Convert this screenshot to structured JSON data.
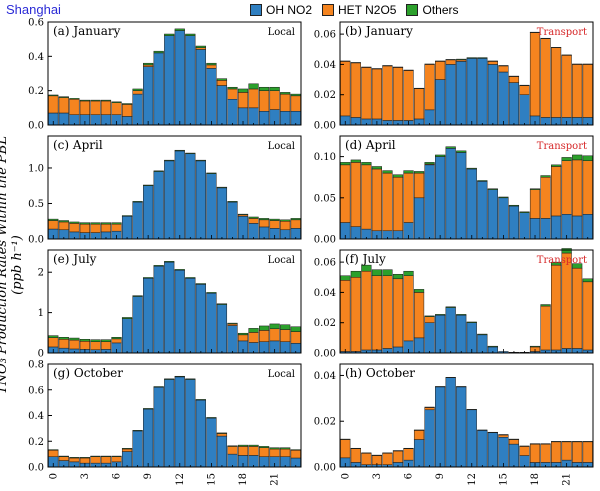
{
  "header": {
    "city": "Shanghai",
    "legend": [
      {
        "label": "OH NO2",
        "color": "#2f7fc1"
      },
      {
        "label": "HET N2O5",
        "color": "#f5841f"
      },
      {
        "label": "Others",
        "color": "#2ca02c"
      }
    ],
    "ylabel": "TNO₃ Production Rates Within the PBL (ppb h⁻¹)"
  },
  "colors": {
    "oh": "#2f7fc1",
    "het": "#f5841f",
    "others": "#2ca02c",
    "local_tag": "#000000",
    "transport_tag": "#d62728"
  },
  "chart_data": [
    {
      "type": "bar",
      "stacked": true,
      "title": "(a) January",
      "tag": "Local",
      "ylim": [
        0,
        0.6
      ],
      "yticks": [
        "0.0",
        "0.2",
        "0.4",
        "0.6"
      ],
      "ytick_values": [
        0,
        0.2,
        0.4,
        0.6
      ],
      "x": [
        0,
        1,
        2,
        3,
        4,
        5,
        6,
        7,
        8,
        9,
        10,
        11,
        12,
        13,
        14,
        15,
        16,
        17,
        18,
        19,
        20,
        21,
        22,
        23
      ],
      "series": [
        {
          "name": "OH NO2",
          "values": [
            0.07,
            0.07,
            0.06,
            0.06,
            0.06,
            0.06,
            0.06,
            0.05,
            0.18,
            0.34,
            0.42,
            0.52,
            0.55,
            0.52,
            0.44,
            0.33,
            0.23,
            0.15,
            0.1,
            0.1,
            0.08,
            0.09,
            0.08,
            0.08
          ]
        },
        {
          "name": "HET N2O5",
          "values": [
            0.1,
            0.09,
            0.09,
            0.08,
            0.08,
            0.08,
            0.07,
            0.07,
            0.02,
            0.01,
            0.0,
            0.0,
            0.0,
            0.0,
            0.01,
            0.02,
            0.03,
            0.06,
            0.09,
            0.11,
            0.12,
            0.11,
            0.1,
            0.09
          ]
        },
        {
          "name": "Others",
          "values": [
            0.005,
            0.005,
            0.005,
            0.005,
            0.005,
            0.005,
            0.005,
            0.005,
            0.01,
            0.01,
            0.01,
            0.01,
            0.01,
            0.01,
            0.01,
            0.01,
            0.01,
            0.01,
            0.02,
            0.03,
            0.02,
            0.02,
            0.01,
            0.01
          ]
        }
      ]
    },
    {
      "type": "bar",
      "stacked": true,
      "title": "(b) January",
      "tag": "Transport",
      "ylim": [
        0,
        0.068
      ],
      "yticks": [
        "0.00",
        "0.02",
        "0.04",
        "0.06"
      ],
      "ytick_values": [
        0,
        0.02,
        0.04,
        0.06
      ],
      "x": [
        0,
        1,
        2,
        3,
        4,
        5,
        6,
        7,
        8,
        9,
        10,
        11,
        12,
        13,
        14,
        15,
        16,
        17,
        18,
        19,
        20,
        21,
        22,
        23
      ],
      "series": [
        {
          "name": "OH NO2",
          "values": [
            0.006,
            0.005,
            0.004,
            0.004,
            0.003,
            0.003,
            0.003,
            0.004,
            0.01,
            0.03,
            0.04,
            0.042,
            0.044,
            0.044,
            0.04,
            0.035,
            0.028,
            0.02,
            0.006,
            0.005,
            0.005,
            0.005,
            0.005,
            0.005
          ]
        },
        {
          "name": "HET N2O5",
          "values": [
            0.036,
            0.036,
            0.034,
            0.033,
            0.036,
            0.035,
            0.033,
            0.02,
            0.03,
            0.012,
            0.003,
            0.001,
            0.0,
            0.0,
            0.002,
            0.004,
            0.004,
            0.006,
            0.055,
            0.052,
            0.046,
            0.041,
            0.035,
            0.035
          ]
        },
        {
          "name": "Others",
          "values": [
            0.0003,
            0.0003,
            0.0003,
            0.0003,
            0.0003,
            0.0003,
            0.0003,
            0.0003,
            0.0003,
            0.0003,
            0.0003,
            0.0005,
            0.0005,
            0.0005,
            0.0003,
            0.0003,
            0.0003,
            0.0003,
            0.0003,
            0.0003,
            0.0003,
            0.0003,
            0.0003,
            0.0003
          ]
        }
      ]
    },
    {
      "type": "bar",
      "stacked": true,
      "title": "(c) April",
      "tag": "Local",
      "ylim": [
        0,
        1.45
      ],
      "yticks": [
        "0.0",
        "0.5",
        "1.0"
      ],
      "ytick_values": [
        0,
        0.5,
        1.0
      ],
      "x": [
        0,
        1,
        2,
        3,
        4,
        5,
        6,
        7,
        8,
        9,
        10,
        11,
        12,
        13,
        14,
        15,
        16,
        17,
        18,
        19,
        20,
        21,
        22,
        23
      ],
      "series": [
        {
          "name": "OH NO2",
          "values": [
            0.14,
            0.13,
            0.1,
            0.09,
            0.09,
            0.1,
            0.11,
            0.32,
            0.52,
            0.75,
            0.95,
            1.1,
            1.24,
            1.2,
            1.1,
            0.92,
            0.72,
            0.52,
            0.32,
            0.22,
            0.17,
            0.15,
            0.13,
            0.15
          ]
        },
        {
          "name": "HET N2O5",
          "values": [
            0.12,
            0.11,
            0.12,
            0.12,
            0.12,
            0.11,
            0.1,
            0.0,
            0.0,
            0.0,
            0.0,
            0.0,
            0.0,
            0.0,
            0.0,
            0.0,
            0.0,
            0.0,
            0.02,
            0.07,
            0.1,
            0.11,
            0.12,
            0.12
          ]
        },
        {
          "name": "Others",
          "values": [
            0.02,
            0.02,
            0.02,
            0.02,
            0.02,
            0.02,
            0.02,
            0.01,
            0.01,
            0.01,
            0.01,
            0.01,
            0.01,
            0.01,
            0.01,
            0.01,
            0.01,
            0.01,
            0.01,
            0.02,
            0.02,
            0.02,
            0.02,
            0.02
          ]
        }
      ]
    },
    {
      "type": "bar",
      "stacked": true,
      "title": "(d) April",
      "tag": "Transport",
      "ylim": [
        0,
        0.125
      ],
      "yticks": [
        "0.00",
        "0.05",
        "0.10"
      ],
      "ytick_values": [
        0,
        0.05,
        0.1
      ],
      "x": [
        0,
        1,
        2,
        3,
        4,
        5,
        6,
        7,
        8,
        9,
        10,
        11,
        12,
        13,
        14,
        15,
        16,
        17,
        18,
        19,
        20,
        21,
        22,
        23
      ],
      "series": [
        {
          "name": "OH NO2",
          "values": [
            0.02,
            0.015,
            0.012,
            0.01,
            0.01,
            0.01,
            0.02,
            0.05,
            0.09,
            0.1,
            0.11,
            0.105,
            0.085,
            0.07,
            0.06,
            0.05,
            0.04,
            0.032,
            0.025,
            0.025,
            0.028,
            0.03,
            0.028,
            0.03
          ]
        },
        {
          "name": "HET N2O5",
          "values": [
            0.07,
            0.078,
            0.078,
            0.075,
            0.07,
            0.065,
            0.06,
            0.03,
            0.001,
            0.0,
            0.0,
            0.0,
            0.0,
            0.0,
            0.0,
            0.0,
            0.0,
            0.0,
            0.035,
            0.05,
            0.06,
            0.065,
            0.068,
            0.065
          ]
        },
        {
          "name": "Others",
          "values": [
            0.003,
            0.003,
            0.003,
            0.003,
            0.003,
            0.003,
            0.003,
            0.002,
            0.002,
            0.002,
            0.002,
            0.002,
            0.001,
            0.001,
            0.001,
            0.001,
            0.001,
            0.001,
            0.001,
            0.002,
            0.002,
            0.004,
            0.006,
            0.006
          ]
        }
      ]
    },
    {
      "type": "bar",
      "stacked": true,
      "title": "(e) July",
      "tag": "Local",
      "ylim": [
        0,
        2.55
      ],
      "yticks": [
        "0",
        "1",
        "2"
      ],
      "ytick_values": [
        0,
        1,
        2
      ],
      "x": [
        0,
        1,
        2,
        3,
        4,
        5,
        6,
        7,
        8,
        9,
        10,
        11,
        12,
        13,
        14,
        15,
        16,
        17,
        18,
        19,
        20,
        21,
        22,
        23
      ],
      "series": [
        {
          "name": "OH NO2",
          "values": [
            0.15,
            0.12,
            0.1,
            0.09,
            0.08,
            0.09,
            0.25,
            0.85,
            1.4,
            1.85,
            2.15,
            2.25,
            2.05,
            1.85,
            1.7,
            1.48,
            1.2,
            0.68,
            0.3,
            0.26,
            0.28,
            0.3,
            0.28,
            0.24
          ]
        },
        {
          "name": "HET N2O5",
          "values": [
            0.23,
            0.22,
            0.22,
            0.2,
            0.2,
            0.19,
            0.1,
            0.0,
            0.0,
            0.0,
            0.0,
            0.0,
            0.0,
            0.0,
            0.0,
            0.0,
            0.0,
            0.04,
            0.15,
            0.25,
            0.28,
            0.3,
            0.3,
            0.29
          ]
        },
        {
          "name": "Others",
          "values": [
            0.05,
            0.05,
            0.05,
            0.05,
            0.05,
            0.05,
            0.04,
            0.03,
            0.02,
            0.02,
            0.02,
            0.02,
            0.02,
            0.02,
            0.02,
            0.02,
            0.02,
            0.02,
            0.04,
            0.1,
            0.11,
            0.12,
            0.12,
            0.12
          ]
        }
      ]
    },
    {
      "type": "bar",
      "stacked": true,
      "title": "(f) July",
      "tag": "Transport",
      "ylim": [
        0,
        0.068
      ],
      "yticks": [
        "0.00",
        "0.02",
        "0.04",
        "0.06"
      ],
      "ytick_values": [
        0,
        0.02,
        0.04,
        0.06
      ],
      "x": [
        0,
        1,
        2,
        3,
        4,
        5,
        6,
        7,
        8,
        9,
        10,
        11,
        12,
        13,
        14,
        15,
        16,
        17,
        18,
        19,
        20,
        21,
        22,
        23
      ],
      "series": [
        {
          "name": "OH NO2",
          "values": [
            0.001,
            0.001,
            0.002,
            0.002,
            0.003,
            0.004,
            0.008,
            0.01,
            0.02,
            0.025,
            0.03,
            0.025,
            0.02,
            0.012,
            0.004,
            0.001,
            0.0005,
            0.0005,
            0.001,
            0.002,
            0.002,
            0.003,
            0.003,
            0.002
          ]
        },
        {
          "name": "HET N2O5",
          "values": [
            0.047,
            0.049,
            0.052,
            0.049,
            0.048,
            0.045,
            0.043,
            0.03,
            0.004,
            0.0,
            0.0,
            0.0,
            0.0,
            0.0,
            0.0,
            0.0,
            0.0,
            0.0,
            0.003,
            0.029,
            0.056,
            0.063,
            0.053,
            0.045
          ]
        },
        {
          "name": "Others",
          "values": [
            0.003,
            0.004,
            0.004,
            0.004,
            0.004,
            0.003,
            0.003,
            0.002,
            0.0005,
            0.0005,
            0.0005,
            0.0005,
            0.0005,
            0.0005,
            0.0005,
            0.0,
            0.0,
            0.0,
            0.0005,
            0.001,
            0.002,
            0.003,
            0.003,
            0.002
          ]
        }
      ]
    },
    {
      "type": "bar",
      "stacked": true,
      "title": "(g) October",
      "tag": "Local",
      "ylim": [
        0,
        0.8
      ],
      "yticks": [
        "0.0",
        "0.2",
        "0.4",
        "0.6",
        "0.8"
      ],
      "ytick_values": [
        0,
        0.2,
        0.4,
        0.6,
        0.8
      ],
      "x": [
        0,
        1,
        2,
        3,
        4,
        5,
        6,
        7,
        8,
        9,
        10,
        11,
        12,
        13,
        14,
        15,
        16,
        17,
        18,
        19,
        20,
        21,
        22,
        23
      ],
      "series": [
        {
          "name": "OH NO2",
          "values": [
            0.08,
            0.05,
            0.04,
            0.03,
            0.03,
            0.03,
            0.04,
            0.12,
            0.28,
            0.45,
            0.62,
            0.68,
            0.7,
            0.68,
            0.52,
            0.38,
            0.24,
            0.1,
            0.09,
            0.09,
            0.08,
            0.08,
            0.08,
            0.07
          ]
        },
        {
          "name": "HET N2O5",
          "values": [
            0.05,
            0.03,
            0.03,
            0.04,
            0.05,
            0.05,
            0.04,
            0.02,
            0.0,
            0.0,
            0.0,
            0.0,
            0.0,
            0.0,
            0.0,
            0.0,
            0.02,
            0.06,
            0.07,
            0.07,
            0.07,
            0.06,
            0.06,
            0.06
          ]
        },
        {
          "name": "Others",
          "values": [
            0.005,
            0.005,
            0.005,
            0.005,
            0.005,
            0.005,
            0.005,
            0.005,
            0.005,
            0.005,
            0.005,
            0.005,
            0.005,
            0.005,
            0.005,
            0.005,
            0.005,
            0.005,
            0.01,
            0.01,
            0.01,
            0.01,
            0.01,
            0.005
          ]
        }
      ]
    },
    {
      "type": "bar",
      "stacked": true,
      "title": "(h) October",
      "tag": "",
      "ylim": [
        0,
        0.045
      ],
      "yticks": [
        "0.00",
        "0.02",
        "0.04"
      ],
      "ytick_values": [
        0,
        0.02,
        0.04
      ],
      "xticks": [
        "0",
        "3",
        "6",
        "9",
        "12",
        "15",
        "18",
        "21"
      ],
      "xtick_values": [
        0,
        3,
        6,
        9,
        12,
        15,
        18,
        21
      ],
      "x": [
        0,
        1,
        2,
        3,
        4,
        5,
        6,
        7,
        8,
        9,
        10,
        11,
        12,
        13,
        14,
        15,
        16,
        17,
        18,
        19,
        20,
        21,
        22,
        23
      ],
      "series": [
        {
          "name": "OH NO2",
          "values": [
            0.004,
            0.002,
            0.001,
            0.001,
            0.001,
            0.002,
            0.003,
            0.012,
            0.025,
            0.035,
            0.039,
            0.035,
            0.025,
            0.016,
            0.015,
            0.013,
            0.01,
            0.005,
            0.002,
            0.002,
            0.002,
            0.003,
            0.002,
            0.002
          ]
        },
        {
          "name": "HET N2O5",
          "values": [
            0.008,
            0.006,
            0.005,
            0.004,
            0.005,
            0.005,
            0.005,
            0.004,
            0.001,
            0.0,
            0.0,
            0.0,
            0.0,
            0.0,
            0.0,
            0.001,
            0.002,
            0.004,
            0.008,
            0.008,
            0.009,
            0.008,
            0.009,
            0.009
          ]
        },
        {
          "name": "Others",
          "values": [
            0.0002,
            0.0002,
            0.0002,
            0.0002,
            0.0002,
            0.0002,
            0.0002,
            0.0002,
            0.0002,
            0.0002,
            0.0002,
            0.0002,
            0.0002,
            0.0002,
            0.0002,
            0.0002,
            0.0002,
            0.0002,
            0.0002,
            0.0002,
            0.0002,
            0.0002,
            0.0002,
            0.0002
          ]
        }
      ]
    }
  ]
}
